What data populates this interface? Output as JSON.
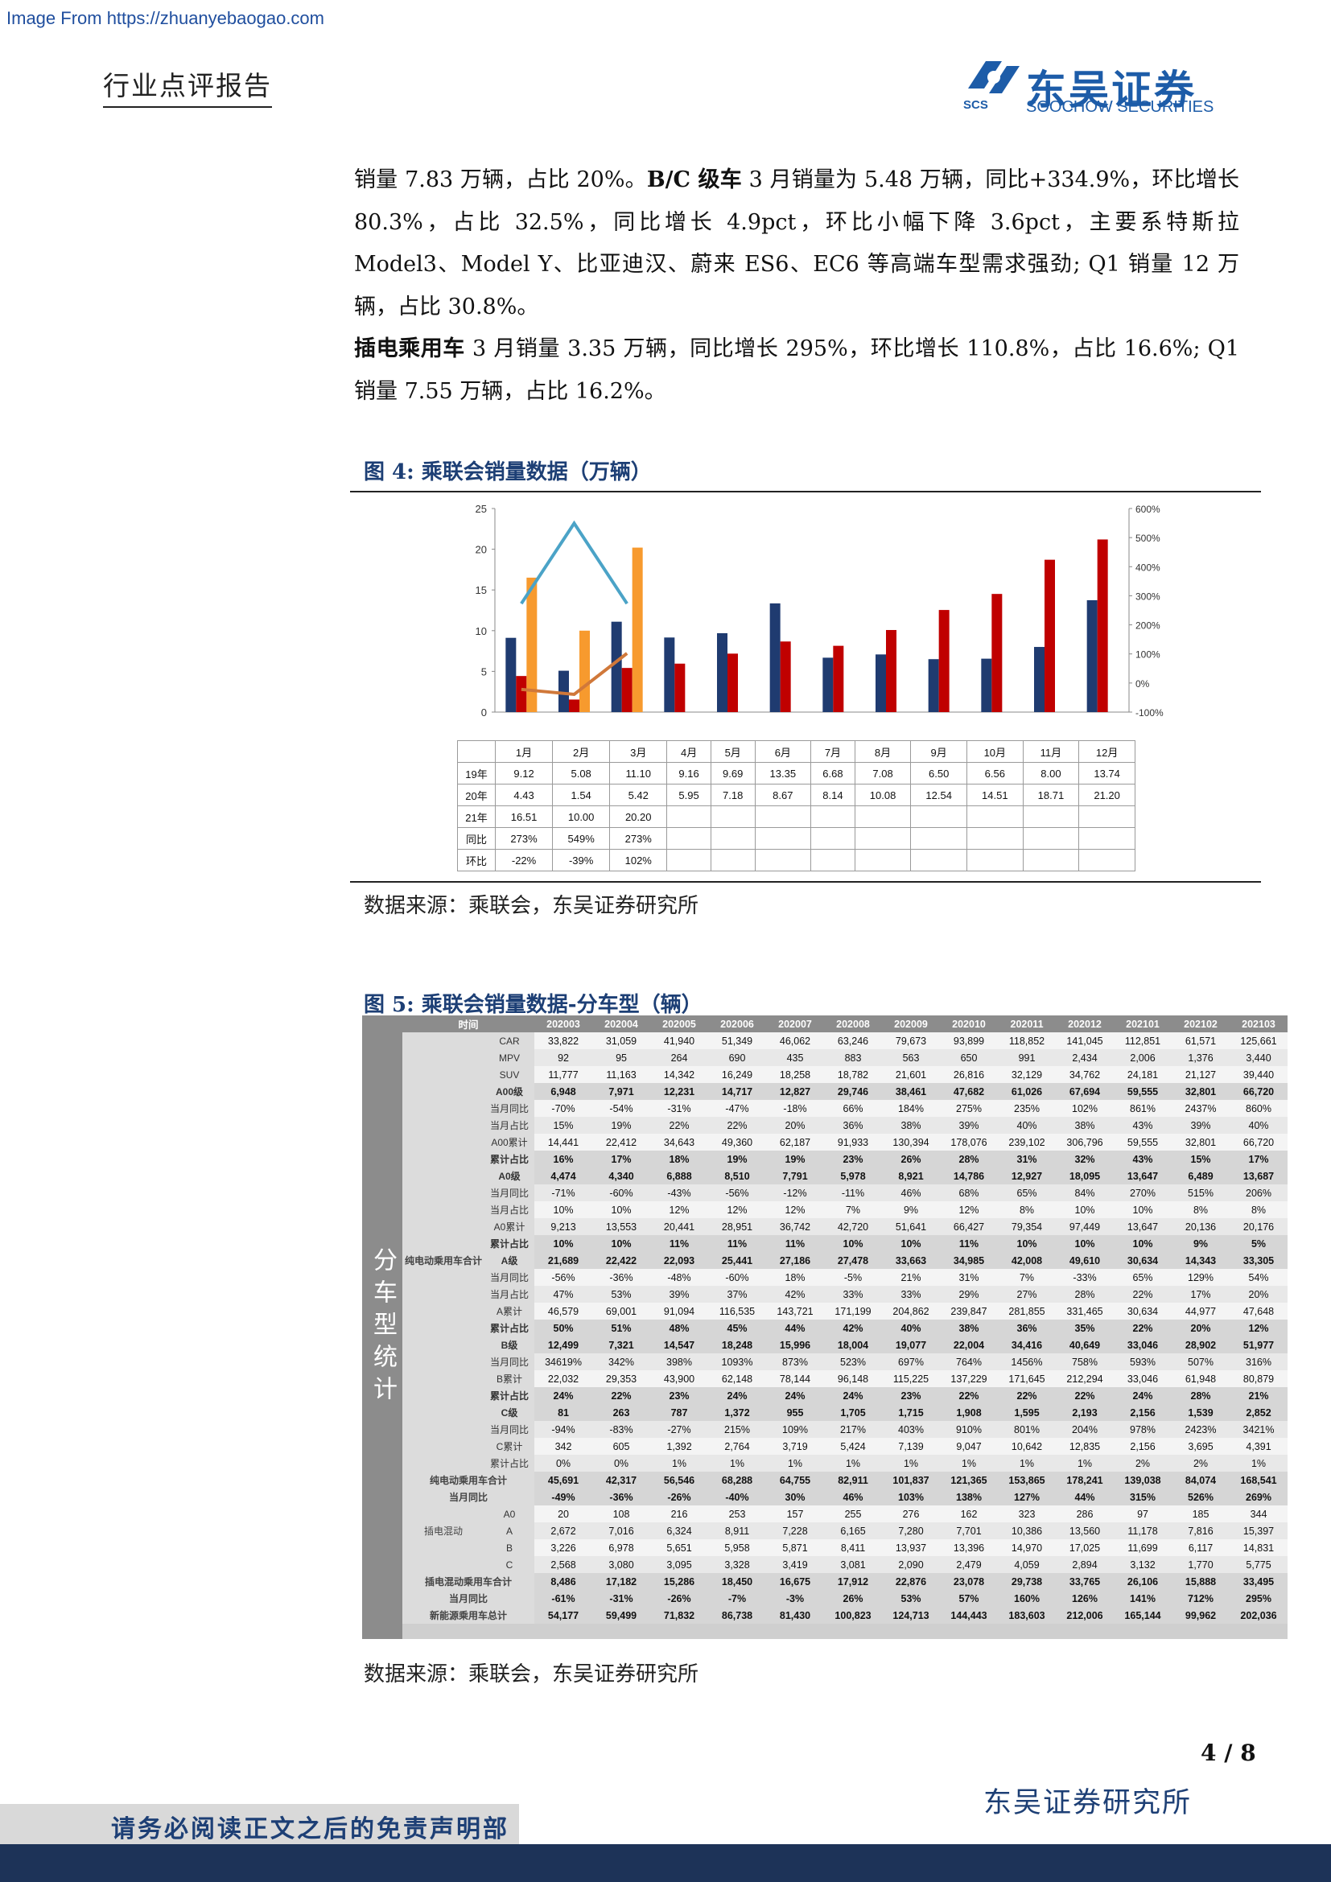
{
  "watermark": "Image From https://zhuanyebaogao.com",
  "header": {
    "report_type": "行业点评报告",
    "logo_cn": "东吴证券",
    "logo_en": "SOOCHOW SECURITIES",
    "logo_abbr": "SCS"
  },
  "body": {
    "p1_a": "销量 7.83 万辆，占比 20%。",
    "p1_b_bold": "B/C 级车",
    "p1_c": " 3 月销量为 5.48 万辆，同比+334.9%，环比增长 80.3%，占比 32.5%，同比增长 4.9pct，环比小幅下降 3.6pct，主要系特斯拉 Model3、Model Y、比亚迪汉、蔚来 ES6、EC6 等高端车型需求强劲; Q1 销量 12 万辆，占比 30.8%。",
    "p2_bold": "插电乘用车",
    "p2_rest": " 3 月销量 3.35 万辆，同比增长 295%，环比增长 110.8%，占比 16.6%; Q1 销量 7.55 万辆，占比 16.2%。"
  },
  "fig4": {
    "title": "图 4:  乘联会销量数据（万辆）",
    "source": "数据来源：乘联会，东吴证券研究所"
  },
  "chart_data": {
    "type": "bar",
    "categories": [
      "1月",
      "2月",
      "3月",
      "4月",
      "5月",
      "6月",
      "7月",
      "8月",
      "9月",
      "10月",
      "11月",
      "12月"
    ],
    "series": [
      {
        "name": "19年",
        "color": "#1f3b70",
        "values": [
          9.12,
          5.08,
          11.1,
          9.16,
          9.69,
          13.35,
          6.68,
          7.08,
          6.5,
          6.56,
          8.0,
          13.74
        ]
      },
      {
        "name": "20年",
        "color": "#c00000",
        "values": [
          4.43,
          1.54,
          5.42,
          5.95,
          7.18,
          8.67,
          8.14,
          10.08,
          12.54,
          14.51,
          18.71,
          21.2
        ]
      },
      {
        "name": "21年",
        "color": "#f79a2e",
        "values": [
          16.51,
          10.0,
          20.2,
          null,
          null,
          null,
          null,
          null,
          null,
          null,
          null,
          null
        ]
      }
    ],
    "lines": [
      {
        "name": "同比",
        "axis": "right",
        "color": "#4ba3c7",
        "values": [
          273,
          549,
          273
        ]
      },
      {
        "name": "环比",
        "axis": "right",
        "color": "#d0783a",
        "values": [
          -22,
          -39,
          102
        ]
      }
    ],
    "ylim": [
      0,
      25
    ],
    "y_ticks": [
      "0",
      "5",
      "10",
      "15",
      "20",
      "25"
    ],
    "y2lim": [
      -100,
      600
    ],
    "y2_ticks": [
      "-100%",
      "0%",
      "100%",
      "200%",
      "300%",
      "400%",
      "500%",
      "600%"
    ],
    "table": {
      "rows": [
        {
          "label": "19年",
          "cells": [
            "9.12",
            "5.08",
            "11.10",
            "9.16",
            "9.69",
            "13.35",
            "6.68",
            "7.08",
            "6.50",
            "6.56",
            "8.00",
            "13.74"
          ]
        },
        {
          "label": "20年",
          "cells": [
            "4.43",
            "1.54",
            "5.42",
            "5.95",
            "7.18",
            "8.67",
            "8.14",
            "10.08",
            "12.54",
            "14.51",
            "18.71",
            "21.20"
          ]
        },
        {
          "label": "21年",
          "cells": [
            "16.51",
            "10.00",
            "20.20",
            "",
            "",
            "",
            "",
            "",
            "",
            "",
            "",
            ""
          ]
        },
        {
          "label": "同比",
          "cells": [
            "273%",
            "549%",
            "273%",
            "",
            "",
            "",
            "",
            "",
            "",
            "",
            "",
            ""
          ]
        },
        {
          "label": "环比",
          "cells": [
            "-22%",
            "-39%",
            "102%",
            "",
            "",
            "",
            "",
            "",
            "",
            "",
            "",
            ""
          ]
        }
      ]
    }
  },
  "fig5": {
    "title": "图 5:  乘联会销量数据-分车型（辆）",
    "source": "数据来源：乘联会，东吴证券研究所",
    "side_label": "分车型统计",
    "header_label": "时间",
    "columns": [
      "202003",
      "202004",
      "202005",
      "202006",
      "202007",
      "202008",
      "202009",
      "202010",
      "202011",
      "202012",
      "202101",
      "202102",
      "202103"
    ],
    "rows": [
      {
        "group": "",
        "label": "CAR",
        "bold": false,
        "values": [
          "33,822",
          "31,059",
          "41,940",
          "51,349",
          "46,062",
          "63,246",
          "79,673",
          "93,899",
          "118,852",
          "141,045",
          "112,851",
          "61,571",
          "125,661"
        ]
      },
      {
        "group": "",
        "label": "MPV",
        "bold": false,
        "values": [
          "92",
          "95",
          "264",
          "690",
          "435",
          "883",
          "563",
          "650",
          "991",
          "2,434",
          "2,006",
          "1,376",
          "3,440"
        ]
      },
      {
        "group": "",
        "label": "SUV",
        "bold": false,
        "values": [
          "11,777",
          "11,163",
          "14,342",
          "16,249",
          "18,258",
          "18,782",
          "21,601",
          "26,816",
          "32,129",
          "34,762",
          "24,181",
          "21,127",
          "39,440"
        ]
      },
      {
        "group": "",
        "label": "A00级",
        "bold": true,
        "values": [
          "6,948",
          "7,971",
          "12,231",
          "14,717",
          "12,827",
          "29,746",
          "38,461",
          "47,682",
          "61,026",
          "67,694",
          "59,555",
          "32,801",
          "66,720"
        ]
      },
      {
        "group": "",
        "label": "当月同比",
        "bold": false,
        "values": [
          "-70%",
          "-54%",
          "-31%",
          "-47%",
          "-18%",
          "66%",
          "184%",
          "275%",
          "235%",
          "102%",
          "861%",
          "2437%",
          "860%"
        ]
      },
      {
        "group": "",
        "label": "当月占比",
        "bold": false,
        "values": [
          "15%",
          "19%",
          "22%",
          "22%",
          "20%",
          "36%",
          "38%",
          "39%",
          "40%",
          "38%",
          "43%",
          "39%",
          "40%"
        ]
      },
      {
        "group": "",
        "label": "A00累计",
        "bold": false,
        "values": [
          "14,441",
          "22,412",
          "34,643",
          "49,360",
          "62,187",
          "91,933",
          "130,394",
          "178,076",
          "239,102",
          "306,796",
          "59,555",
          "32,801",
          "66,720"
        ]
      },
      {
        "group": "",
        "label": "累计占比",
        "bold": true,
        "values": [
          "16%",
          "17%",
          "18%",
          "19%",
          "19%",
          "23%",
          "26%",
          "28%",
          "31%",
          "32%",
          "43%",
          "15%",
          "17%"
        ]
      },
      {
        "group": "",
        "label": "A0级",
        "bold": true,
        "values": [
          "4,474",
          "4,340",
          "6,888",
          "8,510",
          "7,791",
          "5,978",
          "8,921",
          "14,786",
          "12,927",
          "18,095",
          "13,647",
          "6,489",
          "13,687"
        ]
      },
      {
        "group": "",
        "label": "当月同比",
        "bold": false,
        "values": [
          "-71%",
          "-60%",
          "-43%",
          "-56%",
          "-12%",
          "-11%",
          "46%",
          "68%",
          "65%",
          "84%",
          "270%",
          "515%",
          "206%"
        ]
      },
      {
        "group": "",
        "label": "当月占比",
        "bold": false,
        "values": [
          "10%",
          "10%",
          "12%",
          "12%",
          "12%",
          "7%",
          "9%",
          "12%",
          "8%",
          "10%",
          "10%",
          "8%",
          "8%"
        ]
      },
      {
        "group": "",
        "label": "A0累计",
        "bold": false,
        "values": [
          "9,213",
          "13,553",
          "20,441",
          "28,951",
          "36,742",
          "42,720",
          "51,641",
          "66,427",
          "79,354",
          "97,449",
          "13,647",
          "20,136",
          "20,176"
        ]
      },
      {
        "group": "",
        "label": "累计占比",
        "bold": true,
        "values": [
          "10%",
          "10%",
          "11%",
          "11%",
          "11%",
          "10%",
          "10%",
          "11%",
          "10%",
          "10%",
          "10%",
          "9%",
          "5%"
        ]
      },
      {
        "group": "纯电动乘用车合计",
        "label": "A级",
        "bold": true,
        "values": [
          "21,689",
          "22,422",
          "22,093",
          "25,441",
          "27,186",
          "27,478",
          "33,663",
          "34,985",
          "42,008",
          "49,610",
          "30,634",
          "14,343",
          "33,305"
        ]
      },
      {
        "group": "",
        "label": "当月同比",
        "bold": false,
        "values": [
          "-56%",
          "-36%",
          "-48%",
          "-60%",
          "18%",
          "-5%",
          "21%",
          "31%",
          "7%",
          "-33%",
          "65%",
          "129%",
          "54%"
        ]
      },
      {
        "group": "",
        "label": "当月占比",
        "bold": false,
        "values": [
          "47%",
          "53%",
          "39%",
          "37%",
          "42%",
          "33%",
          "33%",
          "29%",
          "27%",
          "28%",
          "22%",
          "17%",
          "20%"
        ]
      },
      {
        "group": "",
        "label": "A累计",
        "bold": false,
        "values": [
          "46,579",
          "69,001",
          "91,094",
          "116,535",
          "143,721",
          "171,199",
          "204,862",
          "239,847",
          "281,855",
          "331,465",
          "30,634",
          "44,977",
          "47,648"
        ]
      },
      {
        "group": "",
        "label": "累计占比",
        "bold": true,
        "values": [
          "50%",
          "51%",
          "48%",
          "45%",
          "44%",
          "42%",
          "40%",
          "38%",
          "36%",
          "35%",
          "22%",
          "20%",
          "12%"
        ]
      },
      {
        "group": "",
        "label": "B级",
        "bold": true,
        "values": [
          "12,499",
          "7,321",
          "14,547",
          "18,248",
          "15,996",
          "18,004",
          "19,077",
          "22,004",
          "34,416",
          "40,649",
          "33,046",
          "28,902",
          "51,977"
        ]
      },
      {
        "group": "",
        "label": "当月同比",
        "bold": false,
        "values": [
          "34619%",
          "342%",
          "398%",
          "1093%",
          "873%",
          "523%",
          "697%",
          "764%",
          "1456%",
          "758%",
          "593%",
          "507%",
          "316%"
        ]
      },
      {
        "group": "",
        "label": "B累计",
        "bold": false,
        "values": [
          "22,032",
          "29,353",
          "43,900",
          "62,148",
          "78,144",
          "96,148",
          "115,225",
          "137,229",
          "171,645",
          "212,294",
          "33,046",
          "61,948",
          "80,879"
        ]
      },
      {
        "group": "",
        "label": "累计占比",
        "bold": true,
        "values": [
          "24%",
          "22%",
          "23%",
          "24%",
          "24%",
          "24%",
          "23%",
          "22%",
          "22%",
          "22%",
          "24%",
          "28%",
          "21%"
        ]
      },
      {
        "group": "",
        "label": "C级",
        "bold": true,
        "values": [
          "81",
          "263",
          "787",
          "1,372",
          "955",
          "1,705",
          "1,715",
          "1,908",
          "1,595",
          "2,193",
          "2,156",
          "1,539",
          "2,852"
        ]
      },
      {
        "group": "",
        "label": "当月同比",
        "bold": false,
        "values": [
          "-94%",
          "-83%",
          "-27%",
          "215%",
          "109%",
          "217%",
          "403%",
          "910%",
          "801%",
          "204%",
          "978%",
          "2423%",
          "3421%"
        ]
      },
      {
        "group": "",
        "label": "C累计",
        "bold": false,
        "values": [
          "342",
          "605",
          "1,392",
          "2,764",
          "3,719",
          "5,424",
          "7,139",
          "9,047",
          "10,642",
          "12,835",
          "2,156",
          "3,695",
          "4,391"
        ]
      },
      {
        "group": "",
        "label": "累计占比",
        "bold": false,
        "values": [
          "0%",
          "0%",
          "1%",
          "1%",
          "1%",
          "1%",
          "1%",
          "1%",
          "1%",
          "1%",
          "2%",
          "2%",
          "1%"
        ]
      },
      {
        "group": "纯电动乘用车合计",
        "label": "",
        "bold": true,
        "values": [
          "45,691",
          "42,317",
          "56,546",
          "68,288",
          "64,755",
          "82,911",
          "101,837",
          "121,365",
          "153,865",
          "178,241",
          "139,038",
          "84,074",
          "168,541"
        ]
      },
      {
        "group": "当月同比",
        "label": "",
        "bold": true,
        "values": [
          "-49%",
          "-36%",
          "-26%",
          "-40%",
          "30%",
          "46%",
          "103%",
          "138%",
          "127%",
          "44%",
          "315%",
          "526%",
          "269%"
        ]
      },
      {
        "group": "",
        "label": "A0",
        "bold": false,
        "values": [
          "20",
          "108",
          "216",
          "253",
          "157",
          "255",
          "276",
          "162",
          "323",
          "286",
          "97",
          "185",
          "344"
        ]
      },
      {
        "group": "插电混动",
        "label": "A",
        "bold": false,
        "values": [
          "2,672",
          "7,016",
          "6,324",
          "8,911",
          "7,228",
          "6,165",
          "7,280",
          "7,701",
          "10,386",
          "13,560",
          "11,178",
          "7,816",
          "15,397"
        ]
      },
      {
        "group": "",
        "label": "B",
        "bold": false,
        "values": [
          "3,226",
          "6,978",
          "5,651",
          "5,958",
          "5,871",
          "8,411",
          "13,937",
          "13,396",
          "14,970",
          "17,025",
          "11,699",
          "6,117",
          "14,831"
        ]
      },
      {
        "group": "",
        "label": "C",
        "bold": false,
        "values": [
          "2,568",
          "3,080",
          "3,095",
          "3,328",
          "3,419",
          "3,081",
          "2,090",
          "2,479",
          "4,059",
          "2,894",
          "3,132",
          "1,770",
          "5,775"
        ]
      },
      {
        "group": "插电混动乘用车合计",
        "label": "",
        "bold": true,
        "values": [
          "8,486",
          "17,182",
          "15,286",
          "18,450",
          "16,675",
          "17,912",
          "22,876",
          "23,078",
          "29,738",
          "33,765",
          "26,106",
          "15,888",
          "33,495"
        ]
      },
      {
        "group": "当月同比",
        "label": "",
        "bold": true,
        "values": [
          "-61%",
          "-31%",
          "-26%",
          "-7%",
          "-3%",
          "26%",
          "53%",
          "57%",
          "160%",
          "126%",
          "141%",
          "712%",
          "295%"
        ]
      },
      {
        "group": "新能源乘用车总计",
        "label": "",
        "bold": true,
        "values": [
          "54,177",
          "59,499",
          "71,832",
          "86,738",
          "81,430",
          "100,823",
          "124,713",
          "144,443",
          "183,603",
          "212,006",
          "165,144",
          "99,962",
          "202,036"
        ]
      }
    ]
  },
  "footer": {
    "page": "4 / 8",
    "org": "东吴证券研究所",
    "disclaimer": "请务必阅读正文之后的免责声明部分"
  }
}
